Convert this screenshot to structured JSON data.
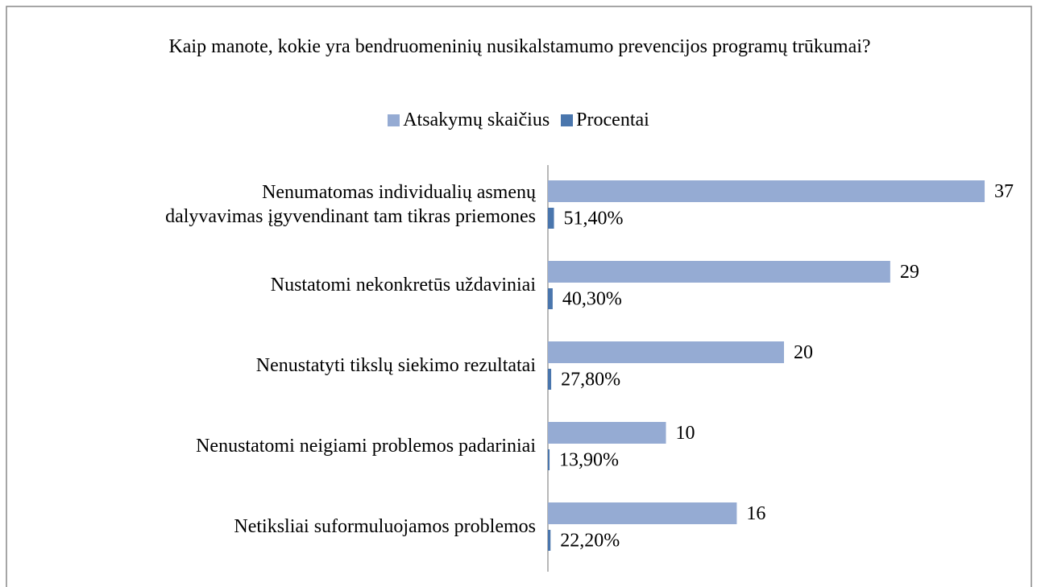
{
  "chart_data": {
    "type": "bar",
    "orientation": "horizontal",
    "title": "Kaip manote, kokie yra bendruomeninių nusikalstamumo prevencijos programų trūkumai?",
    "categories": [
      "Nenumatomas individualių asmenų dalyvavimas įgyvendinant tam tikras priemones",
      "Nustatomi nekonkretūs uždaviniai",
      "Nenustatyti tikslų siekimo rezultatai",
      "Nenustatomi neigiami problemos padariniai",
      "Netiksliai suformuluojamos problemos"
    ],
    "series": [
      {
        "name": "Atsakymų skaičius",
        "color": "#95abd3",
        "values": [
          37,
          29,
          20,
          10,
          16
        ]
      },
      {
        "name": "Procentai",
        "color": "#4a76ad",
        "values": [
          0.514,
          0.403,
          0.278,
          0.139,
          0.222
        ],
        "value_labels": [
          "51,40%",
          "40,30%",
          "27,80%",
          "13,90%",
          "22,20%"
        ]
      }
    ],
    "xlim": [
      0,
      40
    ],
    "legend": "top"
  }
}
